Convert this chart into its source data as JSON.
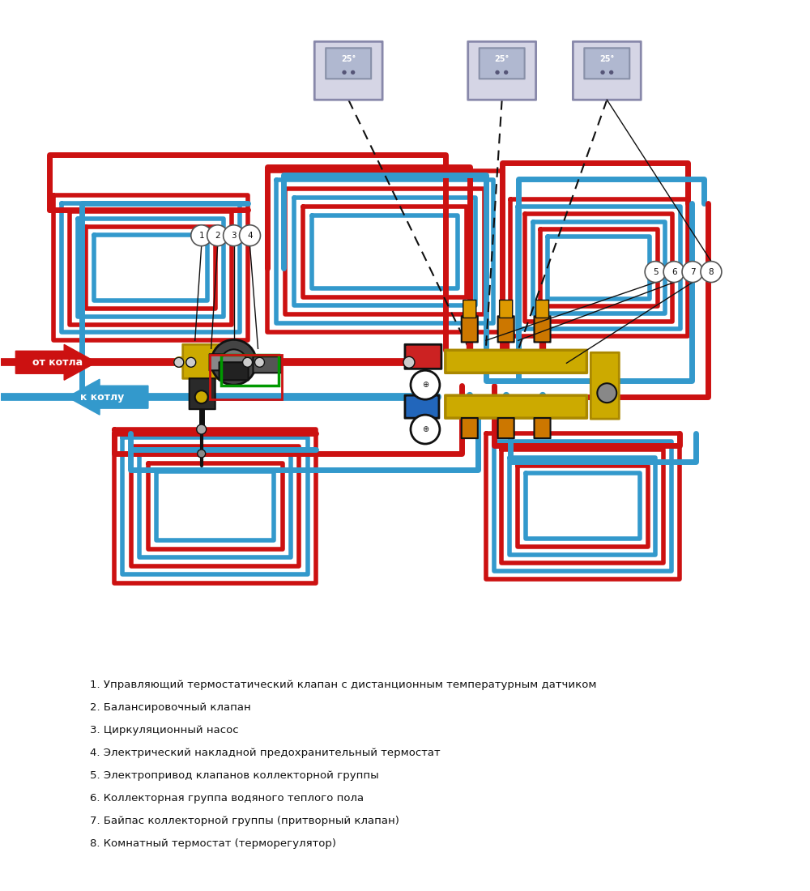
{
  "bg_color": "#ffffff",
  "red_color": "#cc1111",
  "blue_color": "#3399cc",
  "green_color": "#009900",
  "gold_color": "#ccaa00",
  "dark_color": "#111111",
  "gray_color": "#888888",
  "label_items": [
    "1. Управляющий термостатический клапан с дистанционным температурным датчиком",
    "2. Балансировочный клапан",
    "3. Циркуляционный насос",
    "4. Электрический накладной предохранительный термостат",
    "5. Электропривод клапанов коллекторной группы",
    "6. Коллекторная группа водяного теплого пола",
    "7. Байпас коллекторной группы (притворный клапан)",
    "8. Комнатный термостат (терморегулятор)"
  ],
  "figsize": [
    10,
    11
  ],
  "dpi": 100
}
